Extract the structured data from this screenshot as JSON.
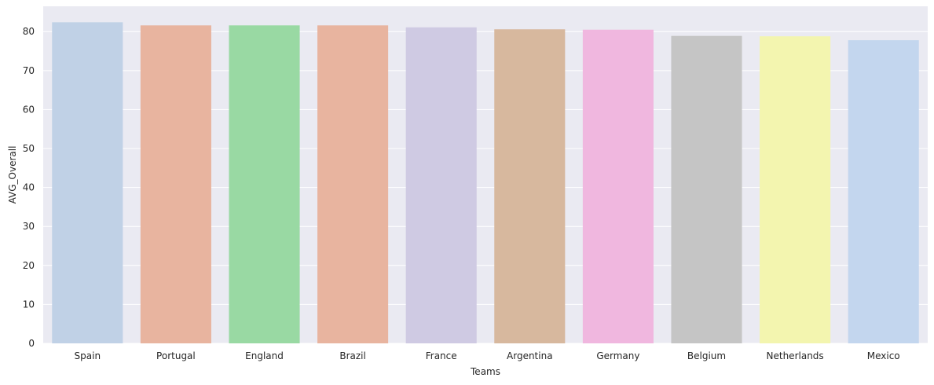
{
  "chart_data": {
    "type": "bar",
    "categories": [
      "Spain",
      "Portugal",
      "England",
      "Brazil",
      "France",
      "Argentina",
      "Germany",
      "Belgium",
      "Netherlands",
      "Mexico"
    ],
    "values": [
      82.4,
      81.6,
      81.6,
      81.6,
      81.1,
      80.6,
      80.5,
      78.9,
      78.8,
      77.8
    ],
    "colors": [
      "#c0d1e6",
      "#e8b49f",
      "#99d9a3",
      "#e8b49f",
      "#cfcae3",
      "#d7b89e",
      "#f0b7df",
      "#c5c5c5",
      "#f3f5af",
      "#c3d6ee"
    ],
    "xlabel": "Teams",
    "ylabel": "AVG_Overall",
    "ylim": [
      0,
      86.5
    ],
    "yticks": [
      0,
      10,
      20,
      30,
      40,
      50,
      60,
      70,
      80
    ],
    "grid": true,
    "style": {
      "background": "#eaeaf2",
      "grid_color": "#ffffff",
      "text_color": "#262626"
    }
  }
}
